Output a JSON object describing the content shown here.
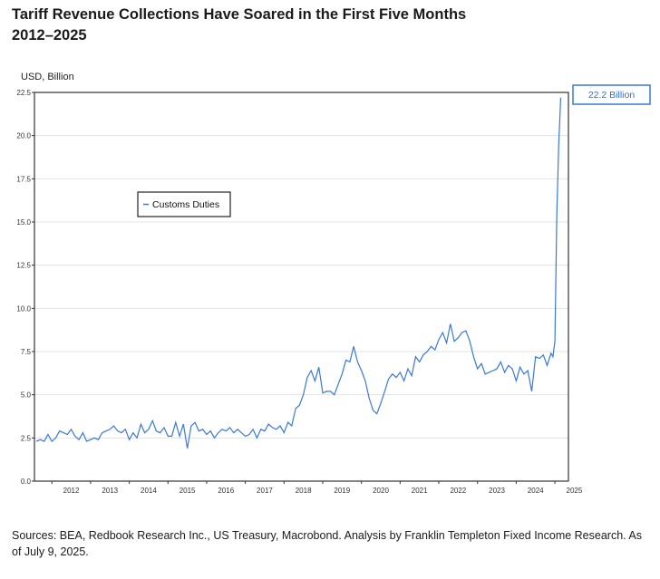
{
  "header": {
    "title_line1": "Tariff Revenue Collections Have Soared in the First Five Months",
    "title_line2": "2012–2025"
  },
  "footer": {
    "source": "Sources: BEA, Redbook Research Inc., US Treasury, Macrobond. Analysis by Franklin Templeton Fixed Income Research. As of July 9, 2025."
  },
  "colors": {
    "series": "#3b78d8",
    "frame": "#333333",
    "grid": "#e3e3e3"
  },
  "chart_data": {
    "type": "line",
    "ylabel": "USD, Billion",
    "ylim": [
      0,
      22.5
    ],
    "yticks": [
      "0.0",
      "2.5",
      "5.0",
      "7.5",
      "10.0",
      "12.5",
      "15.0",
      "17.5",
      "20.0",
      "22.5"
    ],
    "xlim": [
      2011.55,
      2025.35
    ],
    "xticks": [
      "2012",
      "2013",
      "2014",
      "2015",
      "2016",
      "2017",
      "2018",
      "2019",
      "2020",
      "2021",
      "2022",
      "2023",
      "2024",
      "2025"
    ],
    "grid": "horizontal",
    "legend": {
      "position": "upper-left",
      "entries": [
        "Customs Duties"
      ]
    },
    "callout": {
      "text": "22.2 Billion"
    },
    "series": [
      {
        "name": "Customs Duties",
        "x": [
          2011.6,
          2011.7,
          2011.8,
          2011.9,
          2012.0,
          2012.1,
          2012.2,
          2012.3,
          2012.4,
          2012.5,
          2012.6,
          2012.7,
          2012.8,
          2012.9,
          2013.0,
          2013.1,
          2013.2,
          2013.3,
          2013.4,
          2013.5,
          2013.6,
          2013.7,
          2013.8,
          2013.9,
          2014.0,
          2014.1,
          2014.2,
          2014.3,
          2014.4,
          2014.5,
          2014.6,
          2014.7,
          2014.8,
          2014.9,
          2015.0,
          2015.1,
          2015.2,
          2015.3,
          2015.4,
          2015.5,
          2015.6,
          2015.7,
          2015.8,
          2015.9,
          2016.0,
          2016.1,
          2016.2,
          2016.3,
          2016.4,
          2016.5,
          2016.6,
          2016.7,
          2016.8,
          2016.9,
          2017.0,
          2017.1,
          2017.2,
          2017.3,
          2017.4,
          2017.5,
          2017.6,
          2017.7,
          2017.8,
          2017.9,
          2018.0,
          2018.1,
          2018.2,
          2018.3,
          2018.4,
          2018.5,
          2018.6,
          2018.7,
          2018.8,
          2018.9,
          2019.0,
          2019.1,
          2019.2,
          2019.3,
          2019.4,
          2019.5,
          2019.6,
          2019.7,
          2019.8,
          2019.9,
          2020.0,
          2020.1,
          2020.2,
          2020.3,
          2020.4,
          2020.5,
          2020.6,
          2020.7,
          2020.8,
          2020.9,
          2021.0,
          2021.1,
          2021.2,
          2021.3,
          2021.4,
          2021.5,
          2021.6,
          2021.7,
          2021.8,
          2021.9,
          2022.0,
          2022.1,
          2022.2,
          2022.3,
          2022.4,
          2022.5,
          2022.6,
          2022.7,
          2022.8,
          2022.9,
          2023.0,
          2023.1,
          2023.2,
          2023.3,
          2023.4,
          2023.5,
          2023.6,
          2023.7,
          2023.8,
          2023.9,
          2024.0,
          2024.1,
          2024.2,
          2024.3,
          2024.4,
          2024.5,
          2024.6,
          2024.7,
          2024.8,
          2024.9,
          2024.95,
          2025.0,
          2025.05,
          2025.1,
          2025.15
        ],
        "values": [
          2.3,
          2.4,
          2.3,
          2.7,
          2.3,
          2.5,
          2.9,
          2.8,
          2.7,
          3.0,
          2.6,
          2.4,
          2.8,
          2.3,
          2.4,
          2.5,
          2.4,
          2.8,
          2.9,
          3.0,
          3.2,
          2.9,
          2.8,
          3.0,
          2.4,
          2.8,
          2.5,
          3.3,
          2.8,
          3.0,
          3.5,
          2.9,
          2.8,
          3.1,
          2.6,
          2.6,
          3.4,
          2.6,
          3.3,
          1.9,
          3.2,
          3.4,
          2.9,
          3.0,
          2.7,
          2.9,
          2.5,
          2.8,
          3.0,
          2.9,
          3.1,
          2.8,
          3.0,
          2.8,
          2.6,
          2.7,
          3.0,
          2.5,
          3.0,
          2.9,
          3.3,
          3.1,
          3.0,
          3.2,
          2.8,
          3.4,
          3.2,
          4.2,
          4.4,
          5.0,
          6.0,
          6.4,
          5.8,
          6.6,
          5.1,
          5.2,
          5.2,
          5.0,
          5.6,
          6.2,
          7.0,
          6.9,
          7.8,
          6.9,
          6.4,
          5.8,
          4.8,
          4.1,
          3.9,
          4.5,
          5.2,
          5.9,
          6.2,
          6.0,
          6.3,
          5.8,
          6.5,
          6.1,
          7.2,
          6.9,
          7.3,
          7.5,
          7.8,
          7.6,
          8.2,
          8.6,
          8.0,
          9.1,
          8.1,
          8.3,
          8.6,
          8.7,
          8.1,
          7.2,
          6.5,
          6.8,
          6.2,
          6.3,
          6.4,
          6.5,
          6.9,
          6.3,
          6.7,
          6.5,
          5.8,
          6.6,
          6.2,
          6.4,
          5.2,
          7.2,
          7.1,
          7.3,
          6.7,
          7.4,
          7.2,
          8.1,
          15.5,
          19.5,
          22.2
        ]
      }
    ]
  }
}
